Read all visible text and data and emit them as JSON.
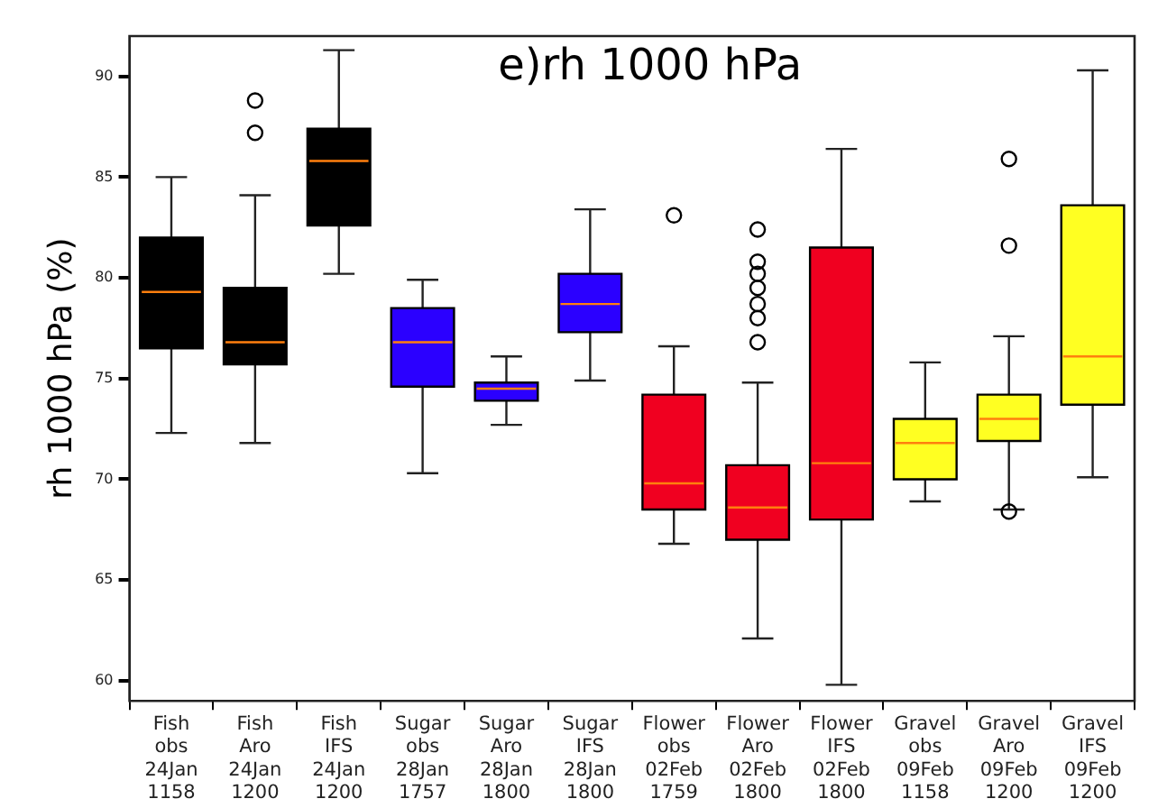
{
  "chart_data": {
    "type": "box",
    "title": "e)rh 1000 hPa",
    "ylabel": "rh 1000 hPa (%)",
    "categories": [
      "Fish\nobs\n24Jan\n1158",
      "Fish\nAro\n24Jan\n1200",
      "Fish\nIFS\n24Jan\n1200",
      "Sugar\nobs\n28Jan\n1757",
      "Sugar\nAro\n28Jan\n1800",
      "Sugar\nIFS\n28Jan\n1800",
      "Flower\nobs\n02Feb\n1759",
      "Flower\nAro\n02Feb\n1800",
      "Flower\nIFS\n02Feb\n1800",
      "Gravel\nobs\n09Feb\n1158",
      "Gravel\nAro\n09Feb\n1200",
      "Gravel\nIFS\n09Feb\n1200"
    ],
    "colors": [
      "#000000",
      "#000000",
      "#000000",
      "#2b00ff",
      "#2b00ff",
      "#2b00ff",
      "#f00020",
      "#f00020",
      "#f00020",
      "#ffff22",
      "#ffff22",
      "#ffff22"
    ],
    "boxes": [
      {
        "low": 72.3,
        "q1": 76.5,
        "median": 79.3,
        "q3": 82,
        "high": 85
      },
      {
        "low": 71.8,
        "q1": 75.7,
        "median": 76.8,
        "q3": 79.5,
        "high": 84.1,
        "outliers": [
          88.8,
          87.2
        ]
      },
      {
        "low": 80.2,
        "q1": 82.6,
        "median": 85.8,
        "q3": 87.4,
        "high": 91.3
      },
      {
        "low": 70.3,
        "q1": 74.6,
        "median": 76.8,
        "q3": 78.5,
        "high": 79.9
      },
      {
        "low": 72.7,
        "q1": 73.9,
        "median": 74.5,
        "q3": 74.8,
        "high": 76.1
      },
      {
        "low": 74.9,
        "q1": 77.3,
        "median": 78.7,
        "q3": 80.2,
        "high": 83.4
      },
      {
        "low": 66.8,
        "q1": 68.5,
        "median": 69.8,
        "q3": 74.2,
        "high": 76.6,
        "outliers": [
          83.1
        ]
      },
      {
        "low": 62.1,
        "q1": 67,
        "median": 68.6,
        "q3": 70.7,
        "high": 74.8,
        "outliers": [
          82.4,
          80.8,
          80.2,
          79.5,
          78.7,
          78,
          76.8
        ]
      },
      {
        "low": 59.8,
        "q1": 68,
        "median": 70.8,
        "q3": 81.5,
        "high": 86.4
      },
      {
        "low": 68.9,
        "q1": 70,
        "median": 71.8,
        "q3": 73,
        "high": 75.8
      },
      {
        "low": 68.5,
        "q1": 71.9,
        "median": 73,
        "q3": 74.2,
        "high": 77.1,
        "outliers": [
          85.9,
          81.6,
          68.4
        ]
      },
      {
        "low": 70.1,
        "q1": 73.7,
        "median": 76.1,
        "q3": 83.6,
        "high": 90.3
      }
    ],
    "ylim": [
      59,
      92
    ],
    "yticks": [
      60,
      65,
      70,
      75,
      80,
      85,
      90
    ]
  }
}
